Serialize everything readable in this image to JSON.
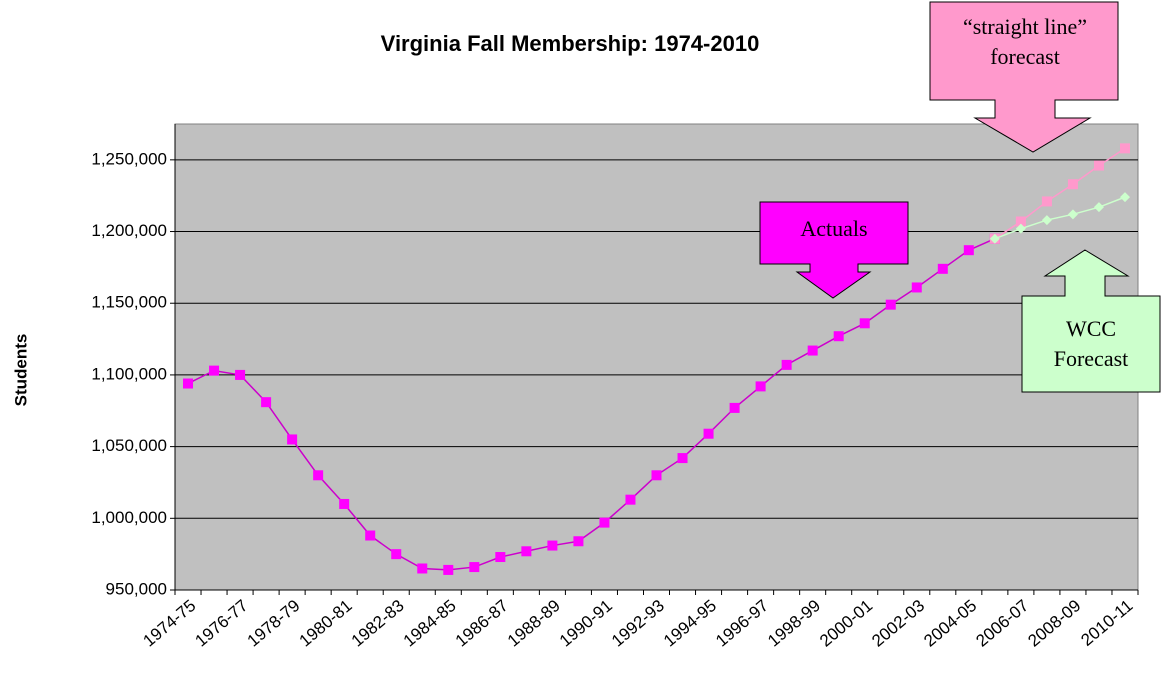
{
  "chart_data": {
    "type": "line",
    "title": "Virginia Fall Membership: 1974-2010",
    "y_label": "Students",
    "categories": [
      "1974-75",
      null,
      "1976-77",
      null,
      "1978-79",
      null,
      "1980-81",
      null,
      "1982-83",
      null,
      "1984-85",
      null,
      "1986-87",
      null,
      "1988-89",
      null,
      "1990-91",
      null,
      "1992-93",
      null,
      "1994-95",
      null,
      "1996-97",
      null,
      "1998-99",
      null,
      "2000-01",
      null,
      "2002-03",
      null,
      "2004-05",
      null,
      "2006-07",
      null,
      "2008-09",
      null,
      "2010-11"
    ],
    "series": [
      {
        "name": "Actuals",
        "color": "#ff00ff",
        "line_color": "#cc00cc",
        "marker": "square",
        "values": [
          1094000,
          1103000,
          1100000,
          1081000,
          1055000,
          1030000,
          1010000,
          988000,
          975000,
          965000,
          964000,
          966000,
          973000,
          977000,
          981000,
          984000,
          997000,
          1013000,
          1030000,
          1042000,
          1059000,
          1077000,
          1092000,
          1107000,
          1117000,
          1127000,
          1136000,
          1149000,
          1161000,
          1174000,
          1187000,
          1195000,
          null,
          null,
          null,
          null,
          null
        ]
      },
      {
        "name": "“straight line” forecast",
        "color": "#ff99cc",
        "line_color": "#ff99cc",
        "marker": "square",
        "values": [
          null,
          null,
          null,
          null,
          null,
          null,
          null,
          null,
          null,
          null,
          null,
          null,
          null,
          null,
          null,
          null,
          null,
          null,
          null,
          null,
          null,
          null,
          null,
          null,
          null,
          null,
          null,
          null,
          null,
          null,
          null,
          1195000,
          1207000,
          1221000,
          1233000,
          1246000,
          1258000
        ]
      },
      {
        "name": "WCC Forecast",
        "color": "#ccffcc",
        "line_color": "#ccffcc",
        "marker": "diamond",
        "values": [
          null,
          null,
          null,
          null,
          null,
          null,
          null,
          null,
          null,
          null,
          null,
          null,
          null,
          null,
          null,
          null,
          null,
          null,
          null,
          null,
          null,
          null,
          null,
          null,
          null,
          null,
          null,
          null,
          null,
          null,
          null,
          1195000,
          1202000,
          1208000,
          1212000,
          1217000,
          1224000
        ]
      }
    ],
    "ylim": [
      950000,
      1275000
    ],
    "yticks": [
      {
        "value": 950000,
        "label": "950,000"
      },
      {
        "value": 1000000,
        "label": "1,000,000"
      },
      {
        "value": 1050000,
        "label": "1,050,000"
      },
      {
        "value": 1100000,
        "label": "1,100,000"
      },
      {
        "value": 1150000,
        "label": "1,150,000"
      },
      {
        "value": 1200000,
        "label": "1,200,000"
      },
      {
        "value": 1250000,
        "label": "1,250,000"
      }
    ],
    "grid": true,
    "plot_background": "#c0c0c0"
  }
}
